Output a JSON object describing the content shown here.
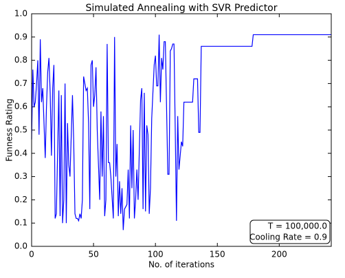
{
  "chart_data": {
    "type": "line",
    "title": "Simulated Annealing with SVR Predictor",
    "xlabel": "No. of iterations",
    "ylabel": "Funness Rating",
    "color": "#0000ff",
    "x": [
      0,
      1,
      2,
      3,
      4,
      5,
      6,
      7,
      8,
      9,
      11,
      12,
      13,
      14,
      15,
      16,
      17,
      18,
      19,
      20,
      22,
      23,
      24,
      25,
      26,
      27,
      28,
      29,
      30,
      31,
      33,
      34,
      35,
      36,
      37,
      38,
      39,
      40,
      41,
      42,
      44,
      45,
      46,
      47,
      48,
      49,
      50,
      51,
      52,
      53,
      55,
      56,
      57,
      58,
      59,
      60,
      61,
      62,
      63,
      64,
      66,
      67,
      68,
      69,
      70,
      71,
      72,
      73,
      74,
      75,
      77,
      78,
      79,
      80,
      81,
      82,
      83,
      84,
      85,
      86,
      88,
      89,
      90,
      91,
      92,
      93,
      94,
      95,
      96,
      97,
      99,
      100,
      101,
      102,
      103,
      104,
      105,
      106,
      107,
      108,
      110,
      111,
      112,
      113,
      114,
      115,
      116,
      117,
      118,
      119,
      121,
      122,
      123,
      130,
      131,
      134,
      135,
      136,
      137,
      178,
      179,
      242
    ],
    "values": [
      0.46,
      0.76,
      0.6,
      0.62,
      0.7,
      0.8,
      0.48,
      0.89,
      0.62,
      0.68,
      0.38,
      0.6,
      0.75,
      0.81,
      0.66,
      0.39,
      0.68,
      0.78,
      0.12,
      0.14,
      0.67,
      0.13,
      0.65,
      0.1,
      0.2,
      0.7,
      0.1,
      0.53,
      0.35,
      0.3,
      0.65,
      0.45,
      0.14,
      0.12,
      0.12,
      0.11,
      0.14,
      0.12,
      0.2,
      0.73,
      0.67,
      0.68,
      0.53,
      0.16,
      0.78,
      0.8,
      0.6,
      0.65,
      0.77,
      0.5,
      0.2,
      0.58,
      0.3,
      0.56,
      0.13,
      0.2,
      0.87,
      0.36,
      0.36,
      0.3,
      0.12,
      0.9,
      0.3,
      0.44,
      0.13,
      0.28,
      0.14,
      0.25,
      0.07,
      0.16,
      0.18,
      0.33,
      0.12,
      0.52,
      0.25,
      0.5,
      0.12,
      0.2,
      0.33,
      0.2,
      0.63,
      0.68,
      0.16,
      0.66,
      0.15,
      0.52,
      0.48,
      0.14,
      0.25,
      0.55,
      0.78,
      0.82,
      0.69,
      0.69,
      0.91,
      0.62,
      0.81,
      0.76,
      0.88,
      0.88,
      0.31,
      0.31,
      0.84,
      0.85,
      0.87,
      0.87,
      0.5,
      0.11,
      0.56,
      0.33,
      0.45,
      0.43,
      0.62,
      0.62,
      0.72,
      0.72,
      0.49,
      0.49,
      0.86,
      0.86,
      0.91,
      0.91
    ],
    "xlim": [
      0,
      242
    ],
    "xticks": [
      0,
      50,
      100,
      150,
      200
    ],
    "ylim": [
      0,
      1
    ],
    "yticks": [
      {
        "value": 0,
        "label": "0.0"
      },
      {
        "value": 0.1,
        "label": "0.1"
      },
      {
        "value": 0.2,
        "label": "0.2"
      },
      {
        "value": 0.3,
        "label": "0.3"
      },
      {
        "value": 0.4,
        "label": "0.4"
      },
      {
        "value": 0.5,
        "label": "0.5"
      },
      {
        "value": 0.6,
        "label": "0.6"
      },
      {
        "value": 0.7,
        "label": "0.7"
      },
      {
        "value": 0.8,
        "label": "0.8"
      },
      {
        "value": 0.9,
        "label": "0.9"
      },
      {
        "value": 1,
        "label": "1.0"
      }
    ],
    "annotations": [
      "T = 100,000.0",
      "Cooling Rate = 0.9"
    ]
  }
}
